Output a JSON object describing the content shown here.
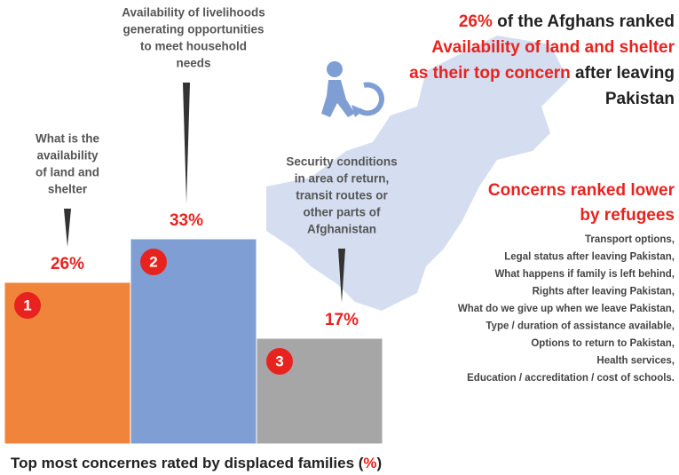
{
  "chart_data": {
    "type": "bar",
    "categories": [
      [
        "What is the",
        "availability",
        "of land and",
        "shelter"
      ],
      [
        "Availability of livelihoods",
        "generating opportunities",
        "to meet household",
        "needs"
      ],
      [
        "Security conditions",
        "in area of return,",
        "transit routes or",
        "other parts of",
        "Afghanistan"
      ]
    ],
    "values": [
      26,
      33,
      17
    ],
    "value_labels": [
      "26%",
      "33%",
      "17%"
    ],
    "colors": [
      "#f0843a",
      "#7f9fd4",
      "#a6a6a6"
    ],
    "ranks": [
      1,
      2,
      3
    ],
    "title": [
      "Top most concernes rated by displaced families (",
      "%",
      ")"
    ],
    "headline": [
      [
        "26%",
        " of the Afghans ranked"
      ],
      [
        "Availability of land and shelter"
      ],
      [
        "as their top concern",
        " after leaving"
      ],
      [
        "Pakistan"
      ]
    ],
    "lower_heading": [
      "Concerns ranked lower",
      "by refugees"
    ],
    "lower_items": [
      "Transport options,",
      "Legal status after leaving Pakistan,",
      "What happens if family is left behind,",
      "Rights after leaving Pakistan,",
      "What do we give up when we leave Pakistan,",
      "Type / duration of assistance available,",
      "Options to return to Pakistan,",
      "Health services,",
      "Education / accreditation / cost of schools."
    ]
  }
}
